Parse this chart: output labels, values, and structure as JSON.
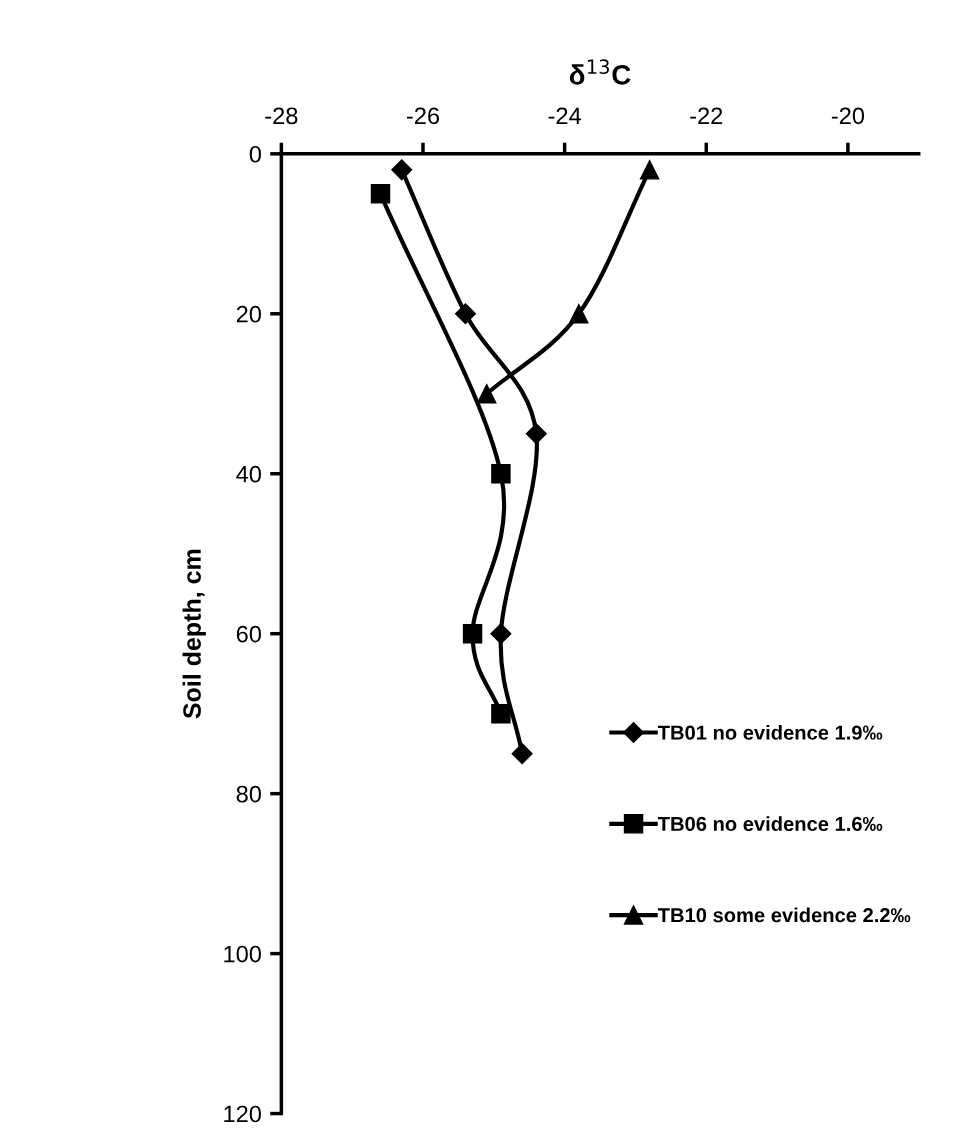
{
  "chart_data": {
    "type": "line",
    "title": "δ$^{13}$C",
    "ylabel": "Soil depth, cm",
    "xlim": [
      -28,
      -19
    ],
    "xticks": [
      -28,
      -26,
      -24,
      -22,
      -20
    ],
    "ylim": [
      120,
      0
    ],
    "yticks": [
      0,
      20,
      40,
      60,
      80,
      100,
      120
    ],
    "grid": false,
    "legend": "right",
    "line_style": "solid",
    "series": [
      {
        "name": "TB01 no evidence 1.9‰",
        "color": "#000000",
        "marker": "diamond",
        "x": [
          -26.3,
          -25.4,
          -24.4,
          -24.9,
          -24.6
        ],
        "values": [
          2,
          20,
          35,
          60,
          75
        ]
      },
      {
        "name": "TB06 no evidence 1.6‰",
        "color": "#000000",
        "marker": "square",
        "x": [
          -26.6,
          -24.9,
          -25.3,
          -24.9
        ],
        "values": [
          5,
          40,
          60,
          70
        ]
      },
      {
        "name": "TB10 some evidence 2.2‰",
        "color": "#000000",
        "marker": "triangle",
        "x": [
          -22.8,
          -23.8,
          -25.1
        ],
        "values": [
          2,
          20,
          30
        ]
      }
    ]
  }
}
